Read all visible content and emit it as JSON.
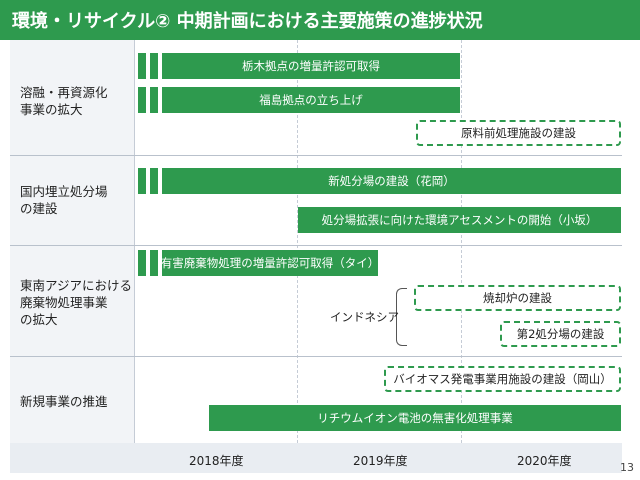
{
  "header": {
    "title": "環境・リサイクル② 中期計画における主要施策の進捗状況"
  },
  "rows": [
    {
      "label": "溶融・再資源化\n事業の拡大"
    },
    {
      "label": "国内埋立処分場\nの建設"
    },
    {
      "label": "東南アジアにおける\n廃棄物処理事業\nの拡大"
    },
    {
      "label": "新規事業の推進"
    }
  ],
  "bars": {
    "tochigi": "栃木拠点の増量許認可取得",
    "fukushima": "福島拠点の立ち上げ",
    "pretreat": "原料前処理施設の建設",
    "new_landfill": "新処分場の建設（花岡）",
    "expansion": "処分場拡張に向けた環境アセスメントの開始（小坂）",
    "hazardous": "有害廃棄物処理の増量許認可取得（タイ）",
    "indonesia": "インドネシア",
    "incinerator": "焼却炉の建設",
    "second_landfill": "第2処分場の建設",
    "biomass": "バイオマス発電事業用施設の建設（岡山）",
    "lithium": "リチウムイオン電池の無害化処理事業"
  },
  "years": [
    "2018年度",
    "2019年度",
    "2020年度"
  ],
  "page_number": "13"
}
